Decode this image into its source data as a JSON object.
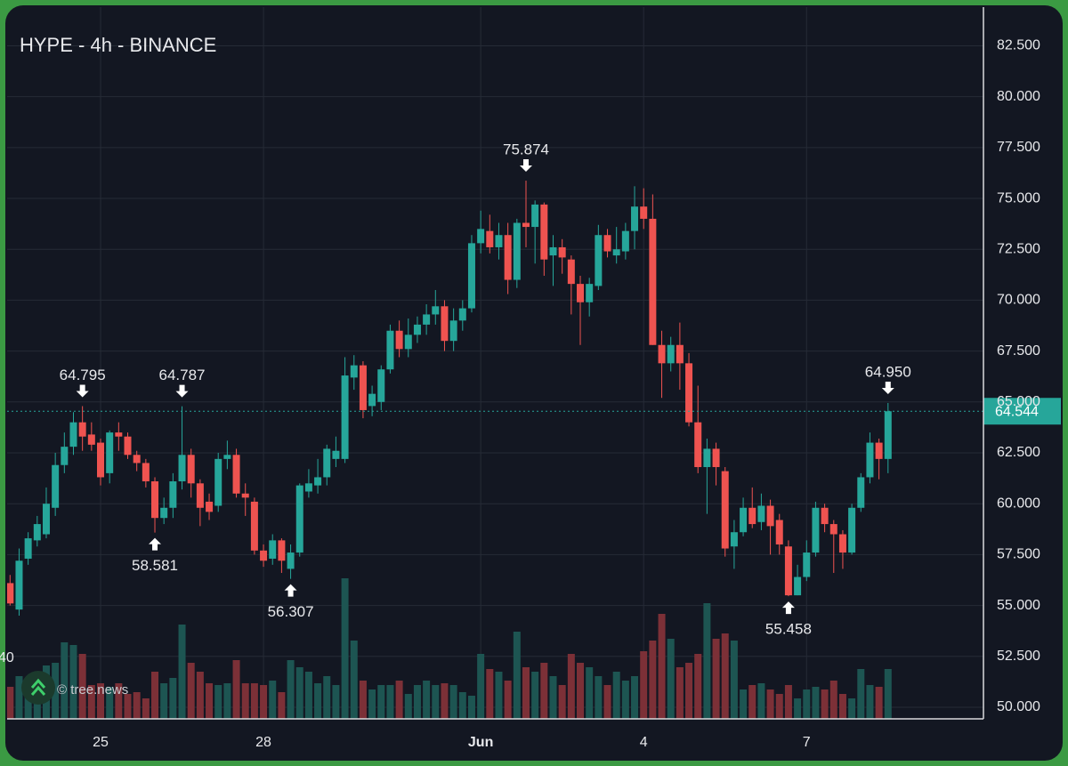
{
  "chart_data": {
    "type": "candlestick",
    "title": "HYPE - 4h - BINANCE",
    "watermark": "© tree.news",
    "volume_axis_label": "40",
    "up_color": "#26a69a",
    "down_color": "#ef5350",
    "volume_up_color": "#1d5552",
    "volume_down_color": "#7c3037",
    "grid": true,
    "categories": [
      null,
      null,
      null,
      null,
      null,
      null,
      null,
      null,
      null,
      null,
      "25",
      null,
      null,
      null,
      null,
      null,
      null,
      null,
      null,
      null,
      null,
      null,
      null,
      null,
      null,
      null,
      null,
      null,
      "28",
      null,
      null,
      null,
      null,
      null,
      null,
      null,
      null,
      null,
      null,
      null,
      null,
      null,
      null,
      null,
      null,
      null,
      null,
      null,
      null,
      null,
      null,
      null,
      "Jun",
      null,
      null,
      null,
      null,
      null,
      null,
      null,
      null,
      null,
      null,
      null,
      null,
      null,
      null,
      null,
      null,
      null,
      "4",
      null,
      null,
      null,
      null,
      null,
      null,
      null,
      null,
      null,
      null,
      null,
      null,
      null,
      null,
      null,
      null,
      null,
      "7",
      null,
      null,
      null,
      null,
      null,
      null,
      null,
      null,
      null
    ],
    "open": [
      56.1,
      54.8,
      57.3,
      58.2,
      58.5,
      59.8,
      61.9,
      62.8,
      64.0,
      63.4,
      63.0,
      61.5,
      63.5,
      63.3,
      62.4,
      62.0,
      61.1,
      59.3,
      59.8,
      61.1,
      62.4,
      61.0,
      60.1,
      59.9,
      62.2,
      62.4,
      60.5,
      60.1,
      57.7,
      57.3,
      58.2,
      56.8,
      57.6,
      60.6,
      60.9,
      61.3,
      62.2,
      62.2,
      66.2,
      66.8,
      64.8,
      65.0,
      66.6,
      68.5,
      67.6,
      68.3,
      68.8,
      69.3,
      69.7,
      68.0,
      69.0,
      69.6,
      72.8,
      73.4,
      72.6,
      73.2,
      71.0,
      73.8,
      73.6,
      74.7,
      72.2,
      72.6,
      72.0,
      70.8,
      69.9,
      70.7,
      73.2,
      72.2,
      72.4,
      73.4,
      74.6,
      74.0,
      67.8,
      66.9,
      67.8,
      66.9,
      64.0,
      61.8,
      62.7,
      61.6,
      57.9,
      58.6,
      59.8,
      59.1,
      59.9,
      59.2,
      57.9,
      55.5,
      56.4,
      57.6,
      59.8,
      59.0,
      58.5,
      57.6,
      59.8,
      61.3,
      63.0,
      62.2
    ],
    "high": [
      56.5,
      57.8,
      58.6,
      59.4,
      60.8,
      62.5,
      63.5,
      64.5,
      64.795,
      64.0,
      63.2,
      63.6,
      64.0,
      63.5,
      62.6,
      62.2,
      61.3,
      60.3,
      61.5,
      64.787,
      62.7,
      61.2,
      60.5,
      62.5,
      63.1,
      62.7,
      61.0,
      60.3,
      58.0,
      58.5,
      58.3,
      58.0,
      61.0,
      61.7,
      62.2,
      62.9,
      63.3,
      67.2,
      67.3,
      67.0,
      65.8,
      66.8,
      68.8,
      69.0,
      69.1,
      69.2,
      69.8,
      70.5,
      70.0,
      69.6,
      70.0,
      73.2,
      74.4,
      74.2,
      73.8,
      73.8,
      74.0,
      75.874,
      74.9,
      74.8,
      73.2,
      73.0,
      72.2,
      71.2,
      71.1,
      73.7,
      73.5,
      73.6,
      73.8,
      75.6,
      75.5,
      75.2,
      68.5,
      68.2,
      68.9,
      67.4,
      65.8,
      63.2,
      63.0,
      61.8,
      59.2,
      60.3,
      60.8,
      60.5,
      60.2,
      59.5,
      58.2,
      57.0,
      58.2,
      60.1,
      60.0,
      59.2,
      58.7,
      60.0,
      61.5,
      63.5,
      63.2,
      64.95
    ],
    "low": [
      55.0,
      54.5,
      57.0,
      57.9,
      58.3,
      59.4,
      61.5,
      62.4,
      62.6,
      62.6,
      60.9,
      61.0,
      62.6,
      62.2,
      61.6,
      60.8,
      58.581,
      59.0,
      59.3,
      60.7,
      60.3,
      58.9,
      59.2,
      59.6,
      61.7,
      60.3,
      59.4,
      57.5,
      56.9,
      57.0,
      56.6,
      56.307,
      57.4,
      60.3,
      60.5,
      60.9,
      61.8,
      62.0,
      65.6,
      64.2,
      64.3,
      64.6,
      66.4,
      67.2,
      67.2,
      67.9,
      68.3,
      68.8,
      67.5,
      67.5,
      68.5,
      69.4,
      72.3,
      72.3,
      72.0,
      70.3,
      70.6,
      72.6,
      71.8,
      71.2,
      70.7,
      71.3,
      69.3,
      67.8,
      69.2,
      70.5,
      72.1,
      71.8,
      72.0,
      72.5,
      73.5,
      67.8,
      65.2,
      66.5,
      65.6,
      63.8,
      61.5,
      59.5,
      60.9,
      57.4,
      56.8,
      58.4,
      58.8,
      58.7,
      57.5,
      57.5,
      55.458,
      55.5,
      56.2,
      57.4,
      58.6,
      56.6,
      56.8,
      57.5,
      59.6,
      61.0,
      61.2,
      61.5
    ],
    "close": [
      55.1,
      57.2,
      58.3,
      59.0,
      60.0,
      61.9,
      62.8,
      64.0,
      63.3,
      62.9,
      61.3,
      63.5,
      63.3,
      62.4,
      62.0,
      61.1,
      59.3,
      59.8,
      61.1,
      62.4,
      61.0,
      59.8,
      59.6,
      62.2,
      62.4,
      60.5,
      60.3,
      57.7,
      57.2,
      58.2,
      57.2,
      57.6,
      60.9,
      61.0,
      61.3,
      62.7,
      62.6,
      66.3,
      66.8,
      64.6,
      65.4,
      66.6,
      68.5,
      67.6,
      68.3,
      68.8,
      69.3,
      69.7,
      68.0,
      69.0,
      69.6,
      72.8,
      73.5,
      72.6,
      73.2,
      71.0,
      73.8,
      73.6,
      74.7,
      72.0,
      72.6,
      72.1,
      70.8,
      69.9,
      70.8,
      73.2,
      72.4,
      72.5,
      73.4,
      74.6,
      74.0,
      67.8,
      66.9,
      67.8,
      66.9,
      64.0,
      61.8,
      62.7,
      61.8,
      57.8,
      58.6,
      59.8,
      59.0,
      59.9,
      58.9,
      58.0,
      55.5,
      56.4,
      57.6,
      59.8,
      59.0,
      58.5,
      57.6,
      59.8,
      61.3,
      63.0,
      62.2,
      64.544
    ],
    "volume": [
      36,
      48,
      43,
      53,
      60,
      63,
      86,
      83,
      73,
      38,
      40,
      36,
      40,
      28,
      30,
      23,
      53,
      40,
      46,
      106,
      63,
      53,
      40,
      38,
      40,
      66,
      40,
      40,
      38,
      43,
      30,
      66,
      58,
      53,
      40,
      48,
      38,
      158,
      88,
      43,
      33,
      38,
      38,
      43,
      28,
      38,
      43,
      38,
      40,
      38,
      30,
      26,
      73,
      56,
      53,
      43,
      98,
      58,
      53,
      63,
      48,
      38,
      73,
      63,
      58,
      48,
      38,
      53,
      43,
      48,
      76,
      88,
      118,
      90,
      58,
      63,
      73,
      130,
      90,
      96,
      88,
      33,
      38,
      40,
      33,
      28,
      38,
      23,
      33,
      36,
      33,
      43,
      28,
      23,
      56,
      38,
      36,
      56
    ],
    "last_label": "64.544",
    "annotations": [
      {
        "value": 64.795,
        "label": "64.795",
        "side": "above"
      },
      {
        "value": 64.787,
        "label": "64.787",
        "side": "above"
      },
      {
        "value": 58.581,
        "label": "58.581",
        "side": "below"
      },
      {
        "value": 56.307,
        "label": "56.307",
        "side": "below"
      },
      {
        "value": 75.874,
        "label": "75.874",
        "side": "above"
      },
      {
        "value": 55.458,
        "label": "55.458",
        "side": "below"
      },
      {
        "value": 64.95,
        "label": "64.950",
        "side": "above"
      }
    ],
    "ylim": [
      49.43,
      84.4
    ],
    "yticks": [
      {
        "value": 50,
        "label": "50.000"
      },
      {
        "value": 52.5,
        "label": "52.500"
      },
      {
        "value": 55,
        "label": "55.000"
      },
      {
        "value": 57.5,
        "label": "57.500"
      },
      {
        "value": 60,
        "label": "60.000"
      },
      {
        "value": 62.5,
        "label": "62.500"
      },
      {
        "value": 65,
        "label": "65.000"
      },
      {
        "value": 67.5,
        "label": "67.500"
      },
      {
        "value": 70,
        "label": "70.000"
      },
      {
        "value": 72.5,
        "label": "72.500"
      },
      {
        "value": 75,
        "label": "75.000"
      },
      {
        "value": 77.5,
        "label": "77.500"
      },
      {
        "value": 80,
        "label": "80.000"
      },
      {
        "value": 82.5,
        "label": "82.500"
      }
    ]
  }
}
